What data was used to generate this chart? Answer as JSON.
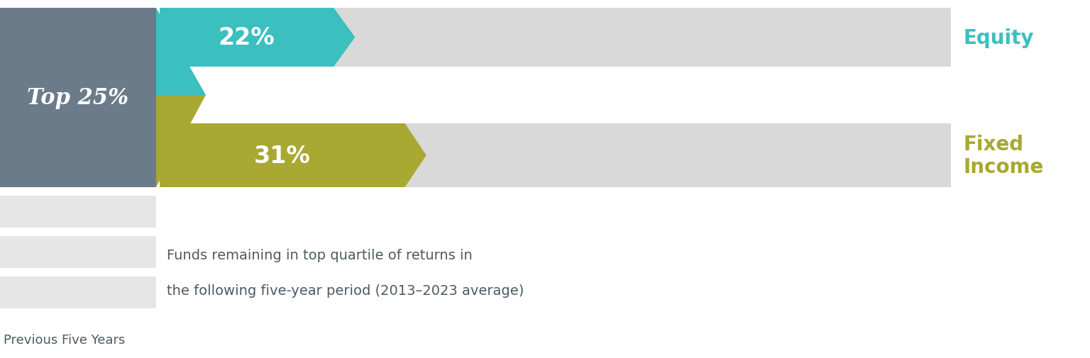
{
  "equity_pct": 22,
  "fixed_income_pct": 31,
  "equity_color": "#3bbfbf",
  "fixed_income_color": "#a8a832",
  "bar_bg_color": "#d9d9d9",
  "left_box_color": "#6b7b8a",
  "left_box_text": "Top 25%",
  "equity_label": "Equity",
  "fixed_income_label1": "Fixed",
  "fixed_income_label2": "Income",
  "equity_label_color": "#3bbfbf",
  "fixed_income_label_color": "#a8a832",
  "annotation_line1": "Funds remaining in top quartile of returns in",
  "annotation_line2": "the following five-year period (2013–2023 average)",
  "bottom_label": "Previous Five Years",
  "left_bg_color": "#e6e6e6",
  "background_color": "#ffffff",
  "text_color": "#4d5a63"
}
